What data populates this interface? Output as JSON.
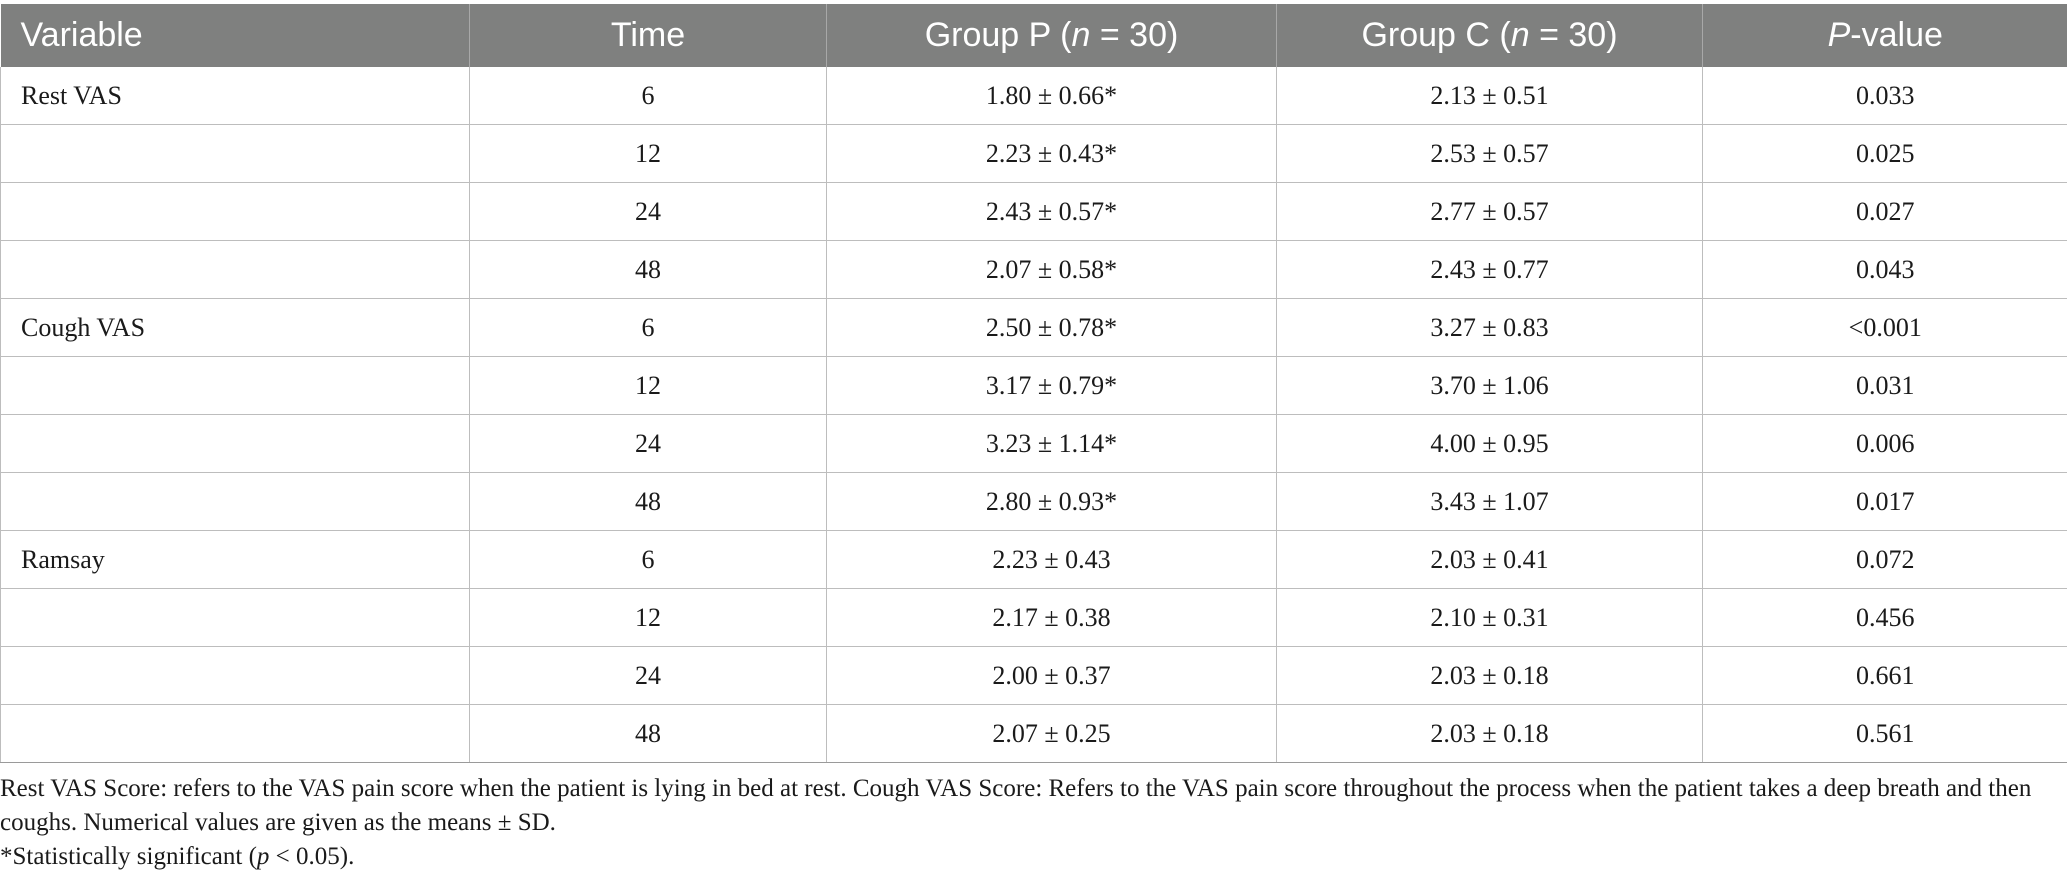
{
  "table": {
    "headers": {
      "variable": "Variable",
      "time": "Time",
      "group_p_prefix": "Group P (",
      "group_p_n": "n",
      "group_p_suffix": " = 30)",
      "group_c_prefix": "Group C (",
      "group_c_n": "n",
      "group_c_suffix": " = 30)",
      "p_value_italic": "P",
      "p_value_suffix": "-value"
    },
    "rows": [
      {
        "variable": "Rest VAS",
        "time": "6",
        "group_p": "1.80 ± 0.66*",
        "group_c": "2.13 ± 0.51",
        "p_value": "0.033"
      },
      {
        "variable": "",
        "time": "12",
        "group_p": "2.23 ± 0.43*",
        "group_c": "2.53 ± 0.57",
        "p_value": "0.025"
      },
      {
        "variable": "",
        "time": "24",
        "group_p": "2.43 ± 0.57*",
        "group_c": "2.77 ± 0.57",
        "p_value": "0.027"
      },
      {
        "variable": "",
        "time": "48",
        "group_p": "2.07 ± 0.58*",
        "group_c": "2.43 ± 0.77",
        "p_value": "0.043"
      },
      {
        "variable": "Cough VAS",
        "time": "6",
        "group_p": "2.50 ± 0.78*",
        "group_c": "3.27 ± 0.83",
        "p_value": "<0.001"
      },
      {
        "variable": "",
        "time": "12",
        "group_p": "3.17 ± 0.79*",
        "group_c": "3.70 ± 1.06",
        "p_value": "0.031"
      },
      {
        "variable": "",
        "time": "24",
        "group_p": "3.23 ± 1.14*",
        "group_c": "4.00 ± 0.95",
        "p_value": "0.006"
      },
      {
        "variable": "",
        "time": "48",
        "group_p": "2.80 ± 0.93*",
        "group_c": "3.43 ± 1.07",
        "p_value": "0.017"
      },
      {
        "variable": "Ramsay",
        "time": "6",
        "group_p": "2.23 ± 0.43",
        "group_c": "2.03 ± 0.41",
        "p_value": "0.072"
      },
      {
        "variable": "",
        "time": "12",
        "group_p": "2.17 ± 0.38",
        "group_c": "2.10 ± 0.31",
        "p_value": "0.456"
      },
      {
        "variable": "",
        "time": "24",
        "group_p": "2.00 ± 0.37",
        "group_c": "2.03 ± 0.18",
        "p_value": "0.661"
      },
      {
        "variable": "",
        "time": "48",
        "group_p": "2.07 ± 0.25",
        "group_c": "2.03 ± 0.18",
        "p_value": "0.561"
      }
    ]
  },
  "footnotes": {
    "line1": "Rest VAS Score: refers to the VAS pain score when the patient is lying in bed at rest. Cough VAS Score: Refers to the VAS pain score throughout the process when the patient takes a deep breath and then coughs. Numerical values are given as the means ± SD.",
    "line2_prefix": "*Statistically significant (",
    "line2_italic": "p",
    "line2_suffix": " < 0.05)."
  },
  "colors": {
    "header_background": "#7f807f",
    "header_text": "#ffffff",
    "grid_lines": "#bdbdbd"
  }
}
